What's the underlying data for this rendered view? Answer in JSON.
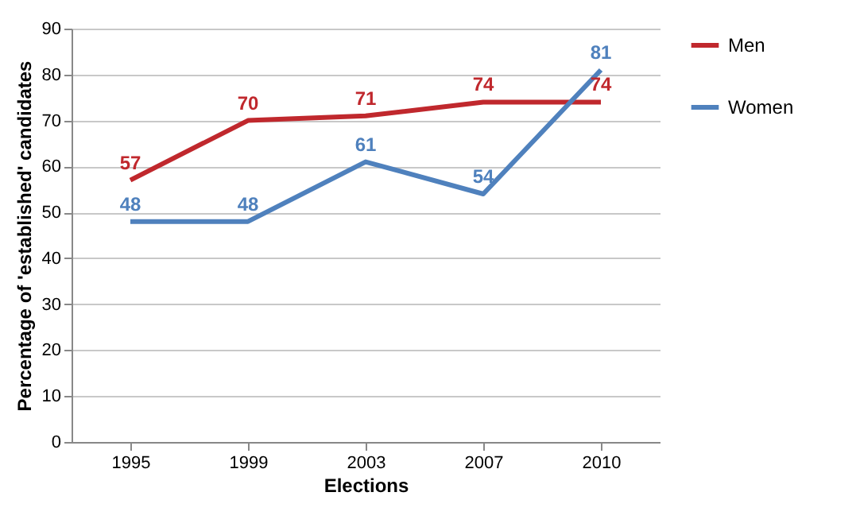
{
  "chart_data": {
    "type": "line",
    "xlabel": "Elections",
    "ylabel": "Percentage of 'established' candidates",
    "categories": [
      "1995",
      "1999",
      "2003",
      "2007",
      "2010"
    ],
    "series": [
      {
        "name": "Men",
        "color": "#c0282d",
        "values": [
          57,
          70,
          71,
          74,
          74
        ]
      },
      {
        "name": "Women",
        "color": "#4f81bd",
        "values": [
          48,
          48,
          61,
          54,
          81
        ]
      }
    ],
    "ylim": [
      0,
      90
    ],
    "yticks": [
      0,
      10,
      20,
      30,
      40,
      50,
      60,
      70,
      80,
      90
    ],
    "grid": "y",
    "legend": "right",
    "data_labels": true,
    "marker": "none",
    "line_style": "solid"
  }
}
